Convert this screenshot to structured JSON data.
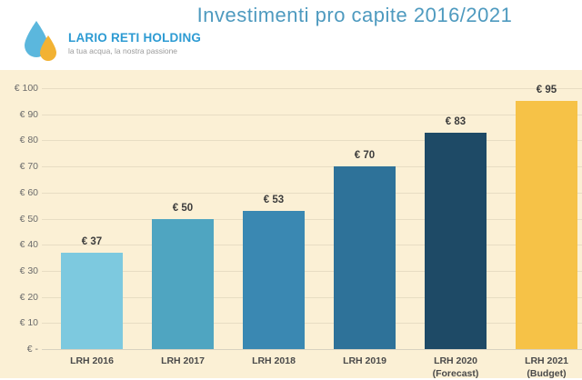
{
  "header": {
    "logo": {
      "name": "LARIO RETI HOLDING",
      "tagline": "la tua acqua, la nostra passione",
      "drop_blue": "#5bb7dd",
      "drop_yellow": "#f2b233"
    },
    "title": "Investimenti pro capite 2016/2021",
    "title_color": "#4e9abf"
  },
  "chart_data": {
    "type": "bar",
    "title": "Investimenti pro capite 2016/2021",
    "xlabel": "",
    "ylabel": "",
    "categories": [
      "LRH 2016",
      "LRH 2017",
      "LRH 2018",
      "LRH 2019",
      "LRH 2020\n(Forecast)",
      "LRH 2021\n(Budget)"
    ],
    "values": [
      37,
      50,
      53,
      70,
      83,
      95
    ],
    "value_labels": [
      "€ 37",
      "€ 50",
      "€ 53",
      "€ 70",
      "€ 83",
      "€ 95"
    ],
    "bar_colors": [
      "#7dc9df",
      "#4fa5c1",
      "#3a88b2",
      "#2e7299",
      "#1e4a66",
      "#f6c247"
    ],
    "ylim": [
      0,
      100
    ],
    "yticks": [
      {
        "value": 0,
        "label": "€ -"
      },
      {
        "value": 10,
        "label": "€ 10"
      },
      {
        "value": 20,
        "label": "€ 20"
      },
      {
        "value": 30,
        "label": "€ 30"
      },
      {
        "value": 40,
        "label": "€ 40"
      },
      {
        "value": 50,
        "label": "€ 50"
      },
      {
        "value": 60,
        "label": "€ 60"
      },
      {
        "value": 70,
        "label": "€ 70"
      },
      {
        "value": 80,
        "label": "€ 80"
      },
      {
        "value": 90,
        "label": "€ 90"
      },
      {
        "value": 100,
        "label": "€ 100"
      }
    ],
    "grid": true,
    "legend": false,
    "plot_bg": "#fbf0d5",
    "grid_color": "#e7ddc3",
    "zero_line_color": "#d8d2c0"
  }
}
